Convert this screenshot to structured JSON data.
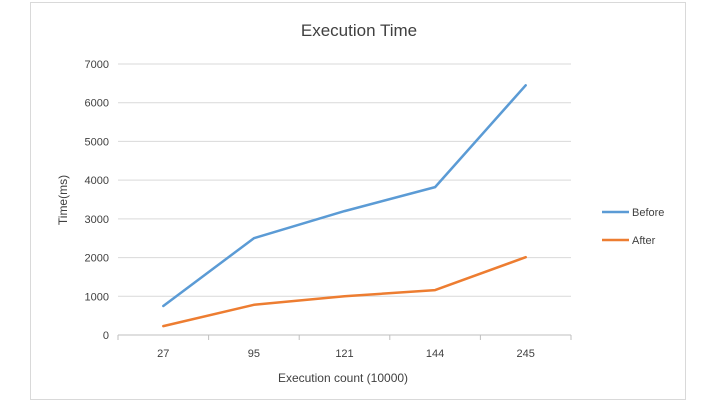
{
  "chart_data": {
    "type": "line",
    "title": "Execution Time",
    "xlabel": "Execution count (10000)",
    "ylabel": "Time(ms)",
    "categories": [
      "27",
      "95",
      "121",
      "144",
      "245"
    ],
    "ylim": [
      0,
      7000
    ],
    "yticks": [
      0,
      1000,
      2000,
      3000,
      4000,
      5000,
      6000,
      7000
    ],
    "grid": true,
    "legend_position": "right",
    "series": [
      {
        "name": "Before",
        "color": "#5b9bd5",
        "values": [
          750,
          2500,
          3200,
          3820,
          6450
        ]
      },
      {
        "name": "After",
        "color": "#ed7d31",
        "values": [
          230,
          780,
          1000,
          1160,
          2010
        ]
      }
    ]
  }
}
